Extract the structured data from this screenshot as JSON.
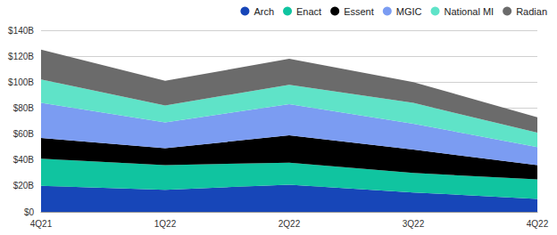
{
  "chart_data": {
    "type": "area",
    "stacked": true,
    "grid": true,
    "legend": "top-right",
    "categories": [
      "4Q21",
      "1Q22",
      "2Q22",
      "3Q22",
      "4Q22"
    ],
    "series": [
      {
        "name": "Arch",
        "color": "#1746b8",
        "values": [
          20,
          17,
          21,
          15,
          10
        ]
      },
      {
        "name": "Enact",
        "color": "#10c4a0",
        "values": [
          21,
          19,
          17,
          15,
          15
        ]
      },
      {
        "name": "Essent",
        "color": "#000000",
        "values": [
          16,
          13,
          21,
          18,
          11
        ]
      },
      {
        "name": "MGIC",
        "color": "#7b9cf2",
        "values": [
          27,
          20,
          24,
          20,
          14
        ]
      },
      {
        "name": "National MI",
        "color": "#5fe3c8",
        "values": [
          18,
          13,
          15,
          16,
          11
        ]
      },
      {
        "name": "Radian",
        "color": "#6b6b6b",
        "values": [
          23,
          19,
          20,
          16,
          12
        ]
      }
    ],
    "ylim": [
      0,
      140
    ],
    "yticks": [
      {
        "value": 0,
        "label": "$0"
      },
      {
        "value": 20,
        "label": "$20B"
      },
      {
        "value": 40,
        "label": "$40B"
      },
      {
        "value": 60,
        "label": "$60B"
      },
      {
        "value": 80,
        "label": "$80B"
      },
      {
        "value": 100,
        "label": "$100B"
      },
      {
        "value": 120,
        "label": "$120B"
      },
      {
        "value": 140,
        "label": "$140B"
      }
    ]
  }
}
